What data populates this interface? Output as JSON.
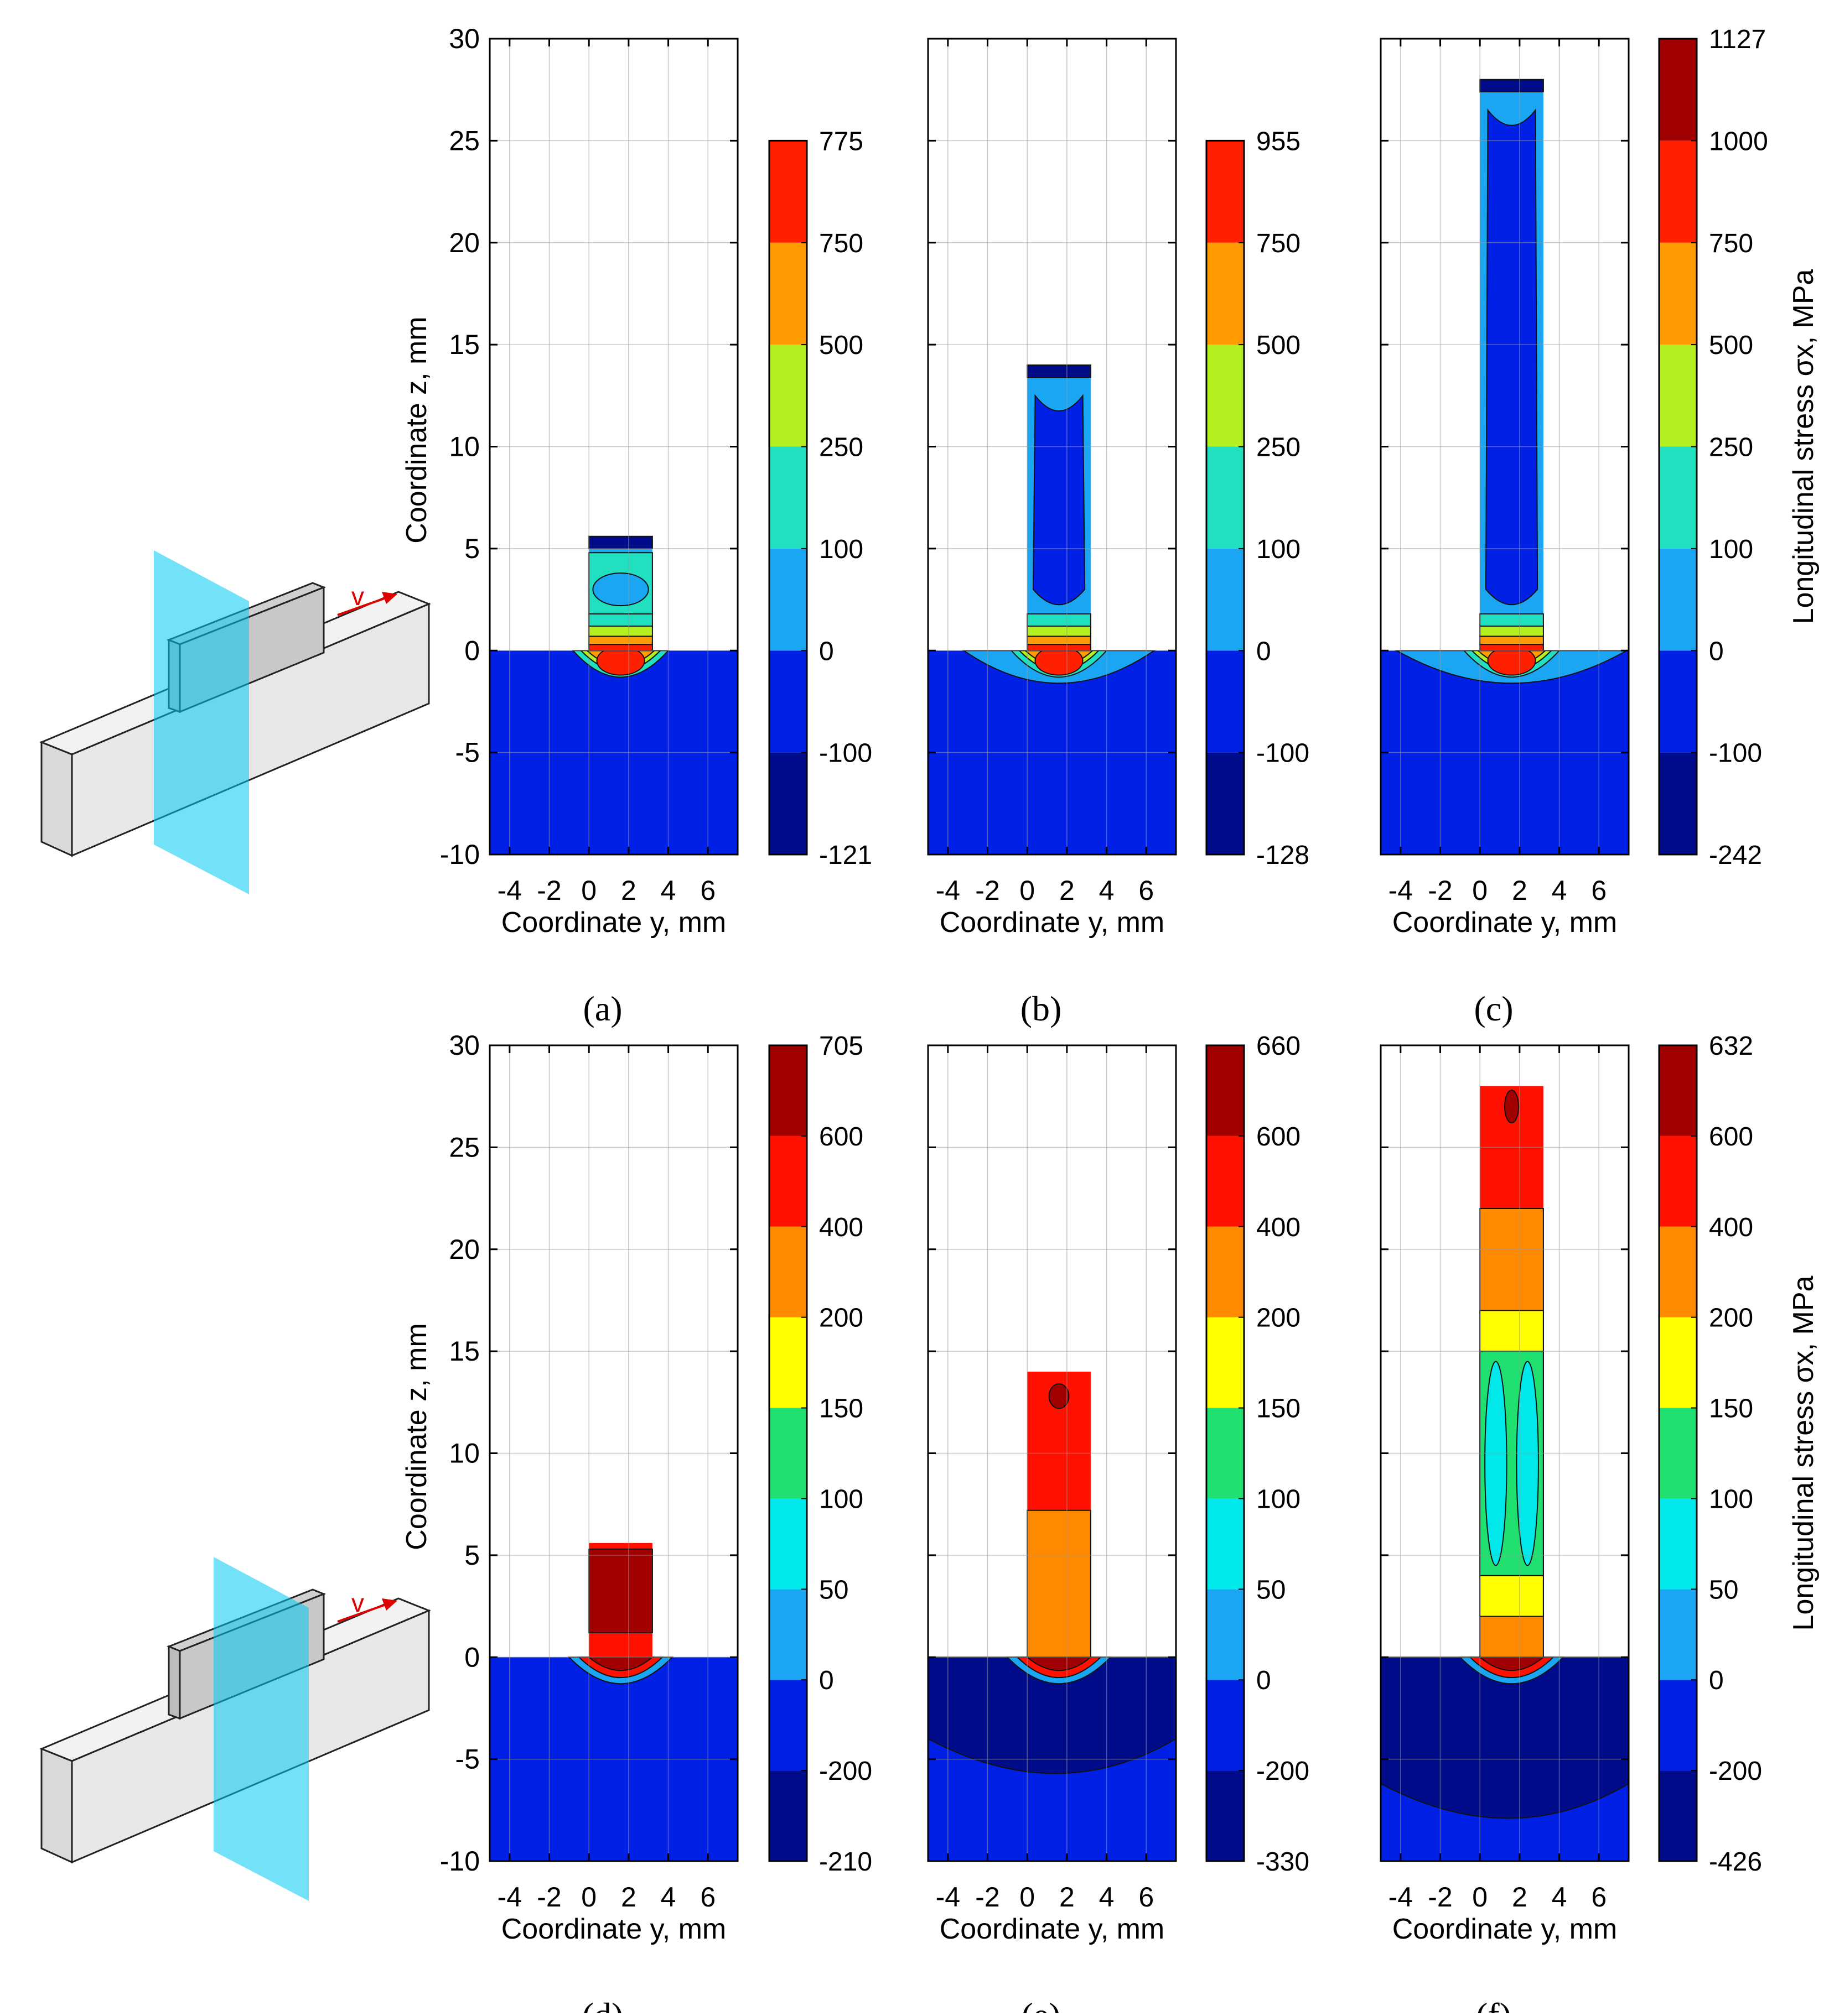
{
  "figure": {
    "schematic_velocity_label": "v"
  },
  "chart_data": [
    {
      "id": "a",
      "type": "heatmap",
      "label": "(a)",
      "xlabel": "Coordinate y, mm",
      "ylabel": "Coordinate z, mm",
      "colorbar_label": "",
      "xlim": [
        -5,
        7.5
      ],
      "ylim": [
        -10,
        30
      ],
      "xticks": [
        "-4",
        "-2",
        "0",
        "2",
        "4",
        "6"
      ],
      "yticks": [
        "-10",
        "-5",
        "0",
        "5",
        "10",
        "15",
        "20",
        "25",
        "30"
      ],
      "wall_height": 5.6,
      "field": "top",
      "colorbar": {
        "levels": [
          "-121",
          "-100",
          "0",
          "100",
          "250",
          "500",
          "750",
          "775"
        ],
        "colors": [
          "#000c8a",
          "#0020e6",
          "#1aa6f2",
          "#20e0c0",
          "#b4f020",
          "#ff9a00",
          "#ff2000"
        ],
        "range": [
          -10,
          30
        ]
      }
    },
    {
      "id": "b",
      "type": "heatmap",
      "label": "(b)",
      "xlabel": "Coordinate y, mm",
      "ylabel": "",
      "colorbar_label": "",
      "xlim": [
        -5,
        7.5
      ],
      "ylim": [
        -10,
        30
      ],
      "xticks": [
        "-4",
        "-2",
        "0",
        "2",
        "4",
        "6"
      ],
      "yticks": [],
      "wall_height": 14,
      "field": "top",
      "colorbar": {
        "levels": [
          "-128",
          "-100",
          "0",
          "100",
          "250",
          "500",
          "750",
          "955"
        ],
        "colors": [
          "#000c8a",
          "#0020e6",
          "#1aa6f2",
          "#20e0c0",
          "#b4f020",
          "#ff9a00",
          "#ff2000"
        ],
        "range": [
          -10,
          30
        ]
      }
    },
    {
      "id": "c",
      "type": "heatmap",
      "label": "(c)",
      "xlabel": "Coordinate y, mm",
      "ylabel": "",
      "colorbar_label": "Longitudinal stress σx, MPa",
      "xlim": [
        -5,
        7.5
      ],
      "ylim": [
        -10,
        30
      ],
      "xticks": [
        "-4",
        "-2",
        "0",
        "2",
        "4",
        "6"
      ],
      "yticks": [],
      "wall_height": 28,
      "field": "top",
      "colorbar": {
        "levels": [
          "-242",
          "-100",
          "0",
          "100",
          "250",
          "500",
          "750",
          "1000",
          "1127"
        ],
        "colors": [
          "#000c8a",
          "#0020e6",
          "#1aa6f2",
          "#20e0c0",
          "#b4f020",
          "#ff9a00",
          "#ff2000",
          "#a00000"
        ],
        "range": [
          -10,
          30
        ]
      }
    },
    {
      "id": "d",
      "type": "heatmap",
      "label": "(d)",
      "xlabel": "Coordinate y, mm",
      "ylabel": "Coordinate z, mm",
      "colorbar_label": "",
      "xlim": [
        -5,
        7.5
      ],
      "ylim": [
        -10,
        30
      ],
      "xticks": [
        "-4",
        "-2",
        "0",
        "2",
        "4",
        "6"
      ],
      "yticks": [
        "-10",
        "-5",
        "0",
        "5",
        "10",
        "15",
        "20",
        "25",
        "30"
      ],
      "wall_height": 5.6,
      "field": "middle",
      "colorbar": {
        "levels": [
          "-210",
          "-200",
          "0",
          "50",
          "100",
          "150",
          "200",
          "400",
          "600",
          "705"
        ],
        "colors": [
          "#000c8a",
          "#0020e6",
          "#1aa6f2",
          "#00e8ea",
          "#20e070",
          "#ffff00",
          "#ff8a00",
          "#ff1000",
          "#a00000"
        ],
        "range": [
          -10,
          30
        ]
      }
    },
    {
      "id": "e",
      "type": "heatmap",
      "label": "(e)",
      "xlabel": "Coordinate y, mm",
      "ylabel": "",
      "colorbar_label": "",
      "xlim": [
        -5,
        7.5
      ],
      "ylim": [
        -10,
        30
      ],
      "xticks": [
        "-4",
        "-2",
        "0",
        "2",
        "4",
        "6"
      ],
      "yticks": [],
      "wall_height": 14,
      "field": "middle",
      "colorbar": {
        "levels": [
          "-330",
          "-200",
          "0",
          "50",
          "100",
          "150",
          "200",
          "400",
          "600",
          "660"
        ],
        "colors": [
          "#000c8a",
          "#0020e6",
          "#1aa6f2",
          "#00e8ea",
          "#20e070",
          "#ffff00",
          "#ff8a00",
          "#ff1000",
          "#a00000"
        ],
        "range": [
          -10,
          30
        ]
      }
    },
    {
      "id": "f",
      "type": "heatmap",
      "label": "(f)",
      "xlabel": "Coordinate y, mm",
      "ylabel": "",
      "colorbar_label": "Longitudinal stress σx, MPa",
      "xlim": [
        -5,
        7.5
      ],
      "ylim": [
        -10,
        30
      ],
      "xticks": [
        "-4",
        "-2",
        "0",
        "2",
        "4",
        "6"
      ],
      "yticks": [],
      "wall_height": 28,
      "field": "middle",
      "colorbar": {
        "levels": [
          "-426",
          "-200",
          "0",
          "50",
          "100",
          "150",
          "200",
          "400",
          "600",
          "632"
        ],
        "colors": [
          "#000c8a",
          "#0020e6",
          "#1aa6f2",
          "#00e8ea",
          "#20e070",
          "#ffff00",
          "#ff8a00",
          "#ff1000",
          "#a00000"
        ],
        "range": [
          -10,
          30
        ]
      }
    }
  ]
}
